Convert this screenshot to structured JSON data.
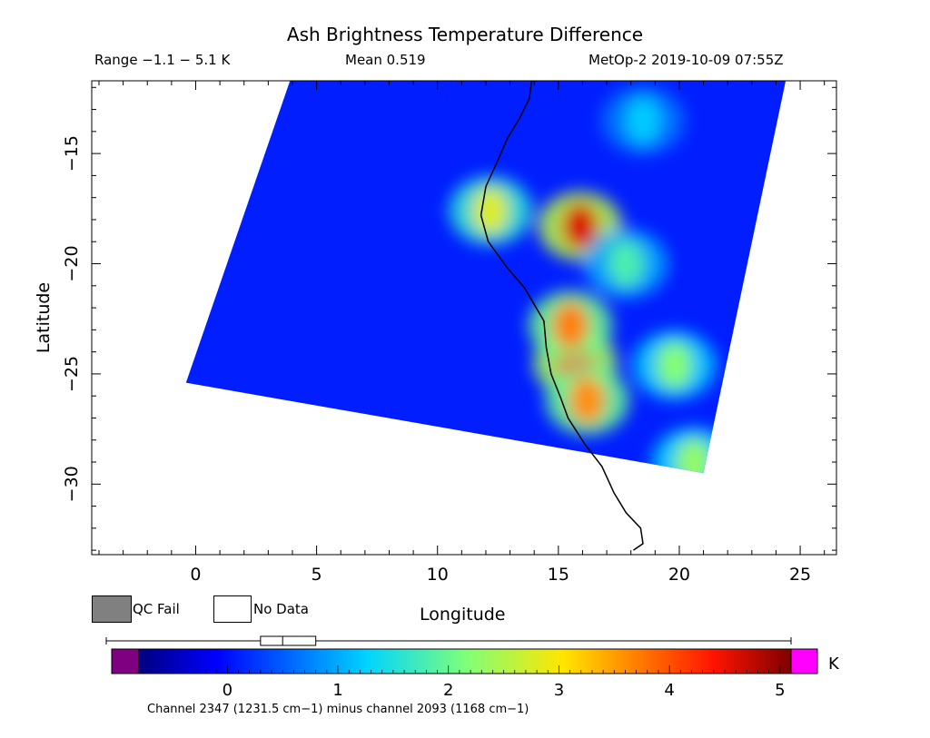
{
  "header": {
    "title": "Ash Brightness Temperature Difference",
    "range": "Range −1.1 − 5.1 K",
    "mean": "Mean 0.519",
    "satellite": "MetOp-2 2019-10-09 07:55Z"
  },
  "chart_data": {
    "type": "heatmap",
    "title": "Ash Brightness Temperature Difference",
    "xlabel": "Longitude",
    "ylabel": "Latitude",
    "xlim": [
      -4.3,
      26.5
    ],
    "ylim": [
      -33.2,
      -11.7
    ],
    "x_ticks": [
      0,
      5,
      10,
      15,
      20,
      25
    ],
    "x_tick_labels": [
      "0",
      "5",
      "10",
      "15",
      "20",
      "25"
    ],
    "y_ticks": [
      -15,
      -20,
      -25,
      -30
    ],
    "y_tick_labels": [
      "−15",
      "−20",
      "−25",
      "−30"
    ],
    "grid": false,
    "swath_corners": [
      [
        3.9,
        -11.7
      ],
      [
        24.4,
        -11.7
      ],
      [
        21.0,
        -29.5
      ],
      [
        -0.4,
        -25.4
      ]
    ],
    "coastline": [
      [
        13.9,
        -11.7
      ],
      [
        13.8,
        -12.5
      ],
      [
        13.4,
        -13.4
      ],
      [
        12.9,
        -14.3
      ],
      [
        12.5,
        -15.3
      ],
      [
        12.0,
        -16.5
      ],
      [
        11.8,
        -17.8
      ],
      [
        12.1,
        -19.0
      ],
      [
        12.9,
        -20.2
      ],
      [
        13.6,
        -21.1
      ],
      [
        14.4,
        -22.6
      ],
      [
        14.5,
        -23.8
      ],
      [
        14.7,
        -25.0
      ],
      [
        15.1,
        -26.1
      ],
      [
        15.4,
        -27.0
      ],
      [
        16.1,
        -28.2
      ],
      [
        16.8,
        -29.2
      ],
      [
        17.3,
        -30.4
      ],
      [
        17.8,
        -31.3
      ],
      [
        18.4,
        -32.0
      ],
      [
        18.5,
        -32.7
      ],
      [
        18.1,
        -33.0
      ]
    ],
    "hotspots": [
      {
        "lon": 15.7,
        "lat": -24.5,
        "value": 4.3
      },
      {
        "lon": 15.5,
        "lat": -22.8,
        "value": 3.7
      },
      {
        "lon": 16.2,
        "lat": -26.2,
        "value": 3.6
      },
      {
        "lon": 15.9,
        "lat": -18.3,
        "value": 4.6
      },
      {
        "lon": 12.2,
        "lat": -17.6,
        "value": 2.8
      },
      {
        "lon": 19.8,
        "lat": -24.6,
        "value": 2.2
      },
      {
        "lon": 20.6,
        "lat": -29.0,
        "value": 2.3
      },
      {
        "lon": 17.8,
        "lat": -20.0,
        "value": 1.8
      },
      {
        "lon": 18.5,
        "lat": -13.5,
        "value": 1.2
      }
    ],
    "background_value": 0.1,
    "colorbar": {
      "unit": "K",
      "ticks": [
        0,
        1,
        2,
        3,
        4,
        5
      ],
      "tick_labels": [
        "0",
        "1",
        "2",
        "3",
        "4",
        "5"
      ],
      "range": [
        -0.8,
        5.1
      ],
      "under_color": "#7f0080",
      "over_color": "#ff00ff",
      "boxplot": {
        "min": -1.1,
        "q1": 0.3,
        "median": 0.5,
        "q3": 0.8,
        "max": 5.1
      }
    },
    "footnote": "Channel 2347 (1231.5 cm−1) minus channel 2093 (1168 cm−1)",
    "legend": {
      "qc_fail_label": "QC Fail",
      "no_data_label": "No Data",
      "qc_fail_color": "#808080"
    }
  }
}
